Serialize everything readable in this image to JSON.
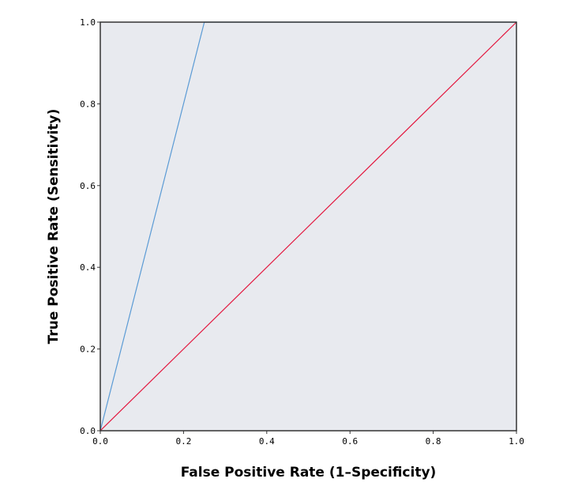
{
  "chart_data": {
    "type": "line",
    "title": "",
    "xlabel": "False Positive Rate (1–Specificity)",
    "ylabel": "True Positive Rate (Sensitivity)",
    "xlim": [
      0.0,
      1.0
    ],
    "ylim": [
      0.0,
      1.0
    ],
    "x_ticks": [
      "0.0",
      "0.2",
      "0.4",
      "0.6",
      "0.8",
      "1.0"
    ],
    "y_ticks": [
      "0.0",
      "0.2",
      "0.4",
      "0.6",
      "0.8",
      "1.0"
    ],
    "grid": false,
    "legend": "none",
    "background_color": "#e8eaef",
    "series": [
      {
        "color": "#5b9bd5",
        "x": [
          0.0,
          0.25,
          1.0
        ],
        "y": [
          0.0,
          1.0,
          1.0
        ]
      },
      {
        "color": "#e3173e",
        "x": [
          0.0,
          1.0
        ],
        "y": [
          0.0,
          1.0
        ]
      }
    ]
  }
}
